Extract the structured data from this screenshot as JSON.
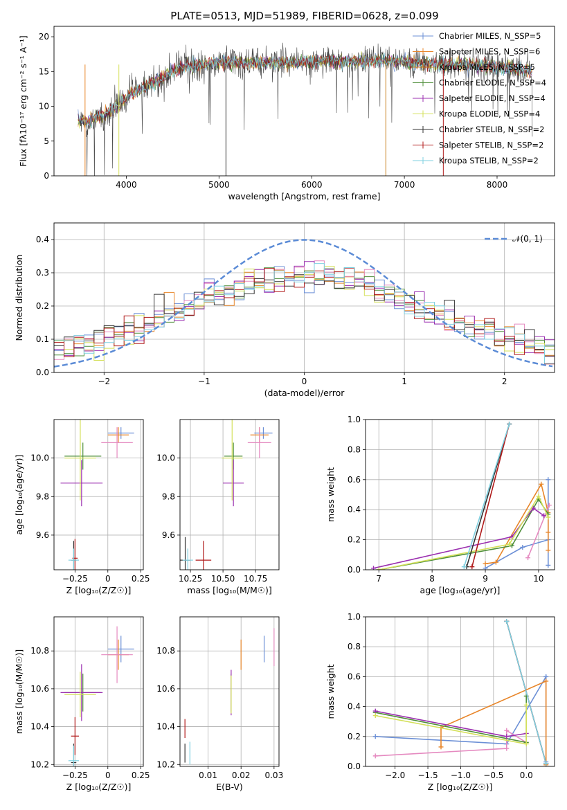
{
  "chart_data": [
    {
      "id": "spectrum",
      "type": "line",
      "title": "PLATE=0513, MJD=51989, FIBERID=0628, z=0.099",
      "xlabel": "wavelength [Angstrom, rest frame]",
      "ylabel": "Flux [fλ10⁻¹⁷ erg cm⁻² s⁻¹ A⁻¹]",
      "xlim": [
        3220,
        8620
      ],
      "ylim": [
        0,
        21.5
      ],
      "xticks": [
        4000,
        5000,
        6000,
        7000,
        8000
      ],
      "yticks": [
        0,
        5,
        10,
        15,
        20
      ],
      "grid": false,
      "legend_position": "top-right",
      "data_envelope": {
        "wavelength": [
          3480,
          3600,
          3800,
          3950,
          4050,
          4200,
          4400,
          4600,
          4800,
          5000,
          5300,
          5600,
          5900,
          6200,
          6500,
          6800,
          7200,
          7600,
          8000,
          8400,
          8600
        ],
        "flux": [
          7.8,
          7.9,
          9.0,
          10.5,
          11.8,
          12.8,
          14.2,
          15.6,
          16.0,
          16.3,
          16.2,
          16.3,
          16.3,
          16.5,
          16.4,
          16.6,
          16.2,
          16.0,
          15.8,
          15.0,
          14.6
        ]
      },
      "series": [
        {
          "name": "Chabrier MILES, N_SSP=5",
          "color": "#6b8fd6"
        },
        {
          "name": "Salpeter MILES, N_SSP=6",
          "color": "#e8862a"
        },
        {
          "name": "Kroupa MILES, N_SSP=5",
          "color": "#c87f1e"
        },
        {
          "name": "Chabrier ELODIE, N_SSP=4",
          "color": "#4f8f3a"
        },
        {
          "name": "Salpeter ELODIE, N_SSP=4",
          "color": "#9b30b0"
        },
        {
          "name": "Kroupa ELODIE, N_SSP=4",
          "color": "#d4e05a"
        },
        {
          "name": "Chabrier STELIB, N_SSP=2",
          "color": "#333333"
        },
        {
          "name": "Salpeter STELIB, N_SSP=2",
          "color": "#b01a1a"
        },
        {
          "name": "Kroupa STELIB, N_SSP=2",
          "color": "#7fd0e0"
        }
      ]
    },
    {
      "id": "residuals",
      "type": "line",
      "xlabel": "(data-model)/error",
      "ylabel": "Normed distribution",
      "xlim": [
        -2.5,
        2.5
      ],
      "ylim": [
        0,
        0.45
      ],
      "xticks": [
        -2,
        -1,
        0,
        1,
        2
      ],
      "yticks": [
        0.0,
        0.1,
        0.2,
        0.3,
        0.4
      ],
      "grid": true,
      "legend_position": "top-right",
      "legend": "𝒩(0, 1)",
      "normal_color": "#5b8bd6",
      "bin_width": 0.1,
      "histogram_colors": [
        "#6b8fd6",
        "#e8862a",
        "#e58ac0",
        "#4f8f3a",
        "#9b30b0",
        "#d4e05a",
        "#333333",
        "#b01a1a",
        "#7fd0e0"
      ]
    },
    {
      "id": "age_vs_Z",
      "type": "scatter",
      "xlabel": "Z [log₁₀(Z/Z☉)]",
      "ylabel": "age  [log₁₀(age/yr)]",
      "xlim": [
        -0.41,
        0.27
      ],
      "ylim": [
        9.42,
        10.2
      ],
      "xticks": [
        -0.25,
        0.0,
        0.25
      ],
      "yticks": [
        9.6,
        9.8,
        10.0
      ],
      "grid": true,
      "points": [
        {
          "x": 0.1,
          "y": 10.13,
          "xerr": 0.1,
          "yerr": 0.03,
          "color": "#6b8fd6"
        },
        {
          "x": 0.08,
          "y": 10.12,
          "xerr": 0.08,
          "yerr": 0.04,
          "color": "#e8862a"
        },
        {
          "x": 0.07,
          "y": 10.08,
          "xerr": 0.12,
          "yerr": 0.08,
          "color": "#e58ac0"
        },
        {
          "x": -0.19,
          "y": 10.01,
          "xerr": 0.14,
          "yerr": 0.07,
          "color": "#4f8f3a"
        },
        {
          "x": -0.2,
          "y": 9.87,
          "xerr": 0.16,
          "yerr": 0.12,
          "color": "#9b30b0"
        },
        {
          "x": -0.21,
          "y": 10.0,
          "xerr": 0.12,
          "yerr": 0.22,
          "color": "#d4e05a"
        },
        {
          "x": -0.26,
          "y": 9.47,
          "xerr": 0.02,
          "yerr": 0.1,
          "color": "#333333"
        },
        {
          "x": -0.25,
          "y": 9.48,
          "xerr": 0.02,
          "yerr": 0.1,
          "color": "#b01a1a"
        },
        {
          "x": -0.26,
          "y": 9.47,
          "xerr": 0.04,
          "yerr": 0.06,
          "color": "#7fd0e0"
        }
      ]
    },
    {
      "id": "age_vs_mass",
      "type": "scatter",
      "xlabel": "mass [log₁₀(M/M☉)]",
      "ylabel": "",
      "xlim": [
        10.17,
        10.93
      ],
      "ylim": [
        9.42,
        10.2
      ],
      "xticks": [
        10.25,
        10.5,
        10.75
      ],
      "xticklabels": [
        "10.25",
        "10.50",
        "10.75"
      ],
      "yticks": [
        9.6,
        9.8,
        10.0
      ],
      "grid": true,
      "points": [
        {
          "x": 10.81,
          "y": 10.13,
          "xerr": 0.07,
          "yerr": 0.03,
          "color": "#6b8fd6"
        },
        {
          "x": 10.78,
          "y": 10.12,
          "xerr": 0.07,
          "yerr": 0.04,
          "color": "#e8862a"
        },
        {
          "x": 10.78,
          "y": 10.08,
          "xerr": 0.09,
          "yerr": 0.08,
          "color": "#e58ac0"
        },
        {
          "x": 10.58,
          "y": 10.01,
          "xerr": 0.07,
          "yerr": 0.07,
          "color": "#4f8f3a"
        },
        {
          "x": 10.58,
          "y": 9.87,
          "xerr": 0.08,
          "yerr": 0.12,
          "color": "#9b30b0"
        },
        {
          "x": 10.57,
          "y": 10.0,
          "xerr": 0.08,
          "yerr": 0.22,
          "color": "#d4e05a"
        },
        {
          "x": 10.21,
          "y": 9.47,
          "xerr": 0.04,
          "yerr": 0.12,
          "color": "#333333"
        },
        {
          "x": 10.35,
          "y": 9.47,
          "xerr": 0.06,
          "yerr": 0.1,
          "color": "#b01a1a"
        },
        {
          "x": 10.23,
          "y": 9.47,
          "xerr": 0.04,
          "yerr": 0.06,
          "color": "#7fd0e0"
        }
      ]
    },
    {
      "id": "weight_vs_age",
      "type": "line",
      "xlabel": "age  [log₁₀(age/yr)]",
      "ylabel": "mass weight",
      "xlim": [
        6.75,
        10.3
      ],
      "ylim": [
        0.0,
        1.0
      ],
      "xticks": [
        7,
        8,
        9,
        10
      ],
      "yticks": [
        0.0,
        0.2,
        0.4,
        0.6,
        0.8,
        1.0
      ],
      "grid": true,
      "series": [
        {
          "color": "#6b8fd6",
          "points": [
            [
              9.0,
              0.01
            ],
            [
              9.7,
              0.15
            ],
            [
              10.18,
              0.2
            ],
            [
              10.18,
              0.6
            ],
            [
              10.18,
              0.03
            ]
          ]
        },
        {
          "color": "#e8862a",
          "points": [
            [
              9.0,
              0.04
            ],
            [
              9.2,
              0.05
            ],
            [
              10.05,
              0.57
            ],
            [
              10.18,
              0.38
            ],
            [
              10.18,
              0.25
            ],
            [
              10.18,
              0.13
            ]
          ]
        },
        {
          "color": "#e58ac0",
          "points": [
            [
              9.8,
              0.08
            ],
            [
              10.2,
              0.43
            ]
          ]
        },
        {
          "color": "#4f8f3a",
          "points": [
            [
              7.0,
              0.0
            ],
            [
              9.5,
              0.16
            ],
            [
              10.0,
              0.47
            ],
            [
              10.18,
              0.37
            ]
          ]
        },
        {
          "color": "#9b30b0",
          "points": [
            [
              6.9,
              0.01
            ],
            [
              9.5,
              0.22
            ],
            [
              9.9,
              0.41
            ],
            [
              10.1,
              0.36
            ]
          ]
        },
        {
          "color": "#d4e05a",
          "points": [
            [
              7.0,
              0.0
            ],
            [
              9.45,
              0.17
            ],
            [
              10.0,
              0.49
            ],
            [
              10.18,
              0.35
            ]
          ]
        },
        {
          "color": "#333333",
          "points": [
            [
              8.65,
              0.02
            ],
            [
              9.45,
              0.97
            ]
          ]
        },
        {
          "color": "#b01a1a",
          "points": [
            [
              8.75,
              0.02
            ],
            [
              9.45,
              0.97
            ]
          ]
        },
        {
          "color": "#7fd0e0",
          "points": [
            [
              8.6,
              0.02
            ],
            [
              9.45,
              0.97
            ]
          ]
        }
      ]
    },
    {
      "id": "mass_vs_Z",
      "type": "scatter",
      "xlabel": "Z [log₁₀(Z/Z☉)]",
      "ylabel": "mass [log₁₀(M/M☉)]",
      "xlim": [
        -0.41,
        0.27
      ],
      "ylim": [
        10.19,
        10.98
      ],
      "xticks": [
        -0.25,
        0.0,
        0.25
      ],
      "yticks": [
        10.2,
        10.4,
        10.6,
        10.8
      ],
      "grid": true,
      "points": [
        {
          "x": 0.1,
          "y": 10.81,
          "xerr": 0.1,
          "yerr": 0.07,
          "color": "#6b8fd6"
        },
        {
          "x": 0.08,
          "y": 10.78,
          "xerr": 0.08,
          "yerr": 0.08,
          "color": "#e8862a"
        },
        {
          "x": 0.07,
          "y": 10.78,
          "xerr": 0.12,
          "yerr": 0.15,
          "color": "#e58ac0"
        },
        {
          "x": -0.19,
          "y": 10.58,
          "xerr": 0.14,
          "yerr": 0.1,
          "color": "#4f8f3a"
        },
        {
          "x": -0.2,
          "y": 10.58,
          "xerr": 0.16,
          "yerr": 0.15,
          "color": "#9b30b0"
        },
        {
          "x": -0.21,
          "y": 10.57,
          "xerr": 0.12,
          "yerr": 0.12,
          "color": "#d4e05a"
        },
        {
          "x": -0.26,
          "y": 10.21,
          "xerr": 0.02,
          "yerr": 0.1,
          "color": "#333333"
        },
        {
          "x": -0.25,
          "y": 10.35,
          "xerr": 0.03,
          "yerr": 0.1,
          "color": "#b01a1a"
        },
        {
          "x": -0.26,
          "y": 10.22,
          "xerr": 0.04,
          "yerr": 0.08,
          "color": "#7fd0e0"
        }
      ]
    },
    {
      "id": "mass_vs_EBV",
      "type": "scatter",
      "xlabel": "E(B-V)",
      "ylabel": "",
      "xlim": [
        0.0015,
        0.0315
      ],
      "ylim": [
        10.19,
        10.98
      ],
      "xticks": [
        0.01,
        0.02,
        0.03
      ],
      "xticklabels": [
        "0.01",
        "0.02",
        "0.03"
      ],
      "yticks": [
        10.2,
        10.4,
        10.6,
        10.8
      ],
      "grid": true,
      "points": [
        {
          "x": 0.027,
          "y": 10.81,
          "xerr": 0,
          "yerr": 0.07,
          "color": "#6b8fd6"
        },
        {
          "x": 0.02,
          "y": 10.78,
          "xerr": 0,
          "yerr": 0.08,
          "color": "#e8862a"
        },
        {
          "x": 0.03,
          "y": 10.82,
          "xerr": 0,
          "yerr": 0.1,
          "color": "#e58ac0"
        },
        {
          "x": 0.017,
          "y": 10.58,
          "xerr": 0,
          "yerr": 0.1,
          "color": "#4f8f3a"
        },
        {
          "x": 0.017,
          "y": 10.58,
          "xerr": 0,
          "yerr": 0.12,
          "color": "#9b30b0"
        },
        {
          "x": 0.017,
          "y": 10.57,
          "xerr": 0,
          "yerr": 0.1,
          "color": "#d4e05a"
        },
        {
          "x": 0.003,
          "y": 10.26,
          "xerr": 0,
          "yerr": 0.05,
          "color": "#333333"
        },
        {
          "x": 0.003,
          "y": 10.39,
          "xerr": 0,
          "yerr": 0.05,
          "color": "#b01a1a"
        },
        {
          "x": 0.0045,
          "y": 10.26,
          "xerr": 0,
          "yerr": 0.06,
          "color": "#7fd0e0"
        }
      ]
    },
    {
      "id": "weight_vs_Z",
      "type": "line",
      "xlabel": "Z [log₁₀(Z/Z☉)]",
      "ylabel": "mass weight",
      "xlim": [
        -2.45,
        0.43
      ],
      "ylim": [
        0.0,
        1.0
      ],
      "xticks": [
        -2.0,
        -1.5,
        -1.0,
        -0.5,
        0.0
      ],
      "xticklabels": [
        "−2.0",
        "−1.5",
        "−1.0",
        "−0.5",
        "0.0"
      ],
      "yticks": [
        0.0,
        0.2,
        0.4,
        0.6,
        0.8,
        1.0
      ],
      "grid": true,
      "series": [
        {
          "color": "#6b8fd6",
          "points": [
            [
              -2.3,
              0.2
            ],
            [
              -0.3,
              0.15
            ],
            [
              0.3,
              0.6
            ],
            [
              0.3,
              0.03
            ]
          ]
        },
        {
          "color": "#e8862a",
          "points": [
            [
              -1.3,
              0.13
            ],
            [
              -1.3,
              0.26
            ],
            [
              0.3,
              0.57
            ],
            [
              0.3,
              0.01
            ]
          ]
        },
        {
          "color": "#e58ac0",
          "points": [
            [
              -2.3,
              0.07
            ],
            [
              -0.3,
              0.12
            ],
            [
              -0.3,
              0.24
            ],
            [
              0.0,
              0.16
            ]
          ]
        },
        {
          "color": "#4f8f3a",
          "points": [
            [
              -2.3,
              0.36
            ],
            [
              0.0,
              0.16
            ],
            [
              0.0,
              0.47
            ]
          ]
        },
        {
          "color": "#9b30b0",
          "points": [
            [
              -2.3,
              0.37
            ],
            [
              -0.3,
              0.2
            ],
            [
              0.0,
              0.22
            ]
          ]
        },
        {
          "color": "#d4e05a",
          "points": [
            [
              -2.3,
              0.34
            ],
            [
              0.0,
              0.15
            ],
            [
              0.0,
              0.41
            ]
          ]
        },
        {
          "color": "#333333",
          "points": [
            [
              -0.3,
              0.97
            ],
            [
              0.3,
              0.02
            ]
          ]
        },
        {
          "color": "#b01a1a",
          "points": [
            [
              -0.3,
              0.97
            ],
            [
              0.3,
              0.02
            ]
          ]
        },
        {
          "color": "#7fd0e0",
          "points": [
            [
              -0.3,
              0.97
            ],
            [
              0.3,
              0.02
            ]
          ]
        }
      ]
    }
  ]
}
